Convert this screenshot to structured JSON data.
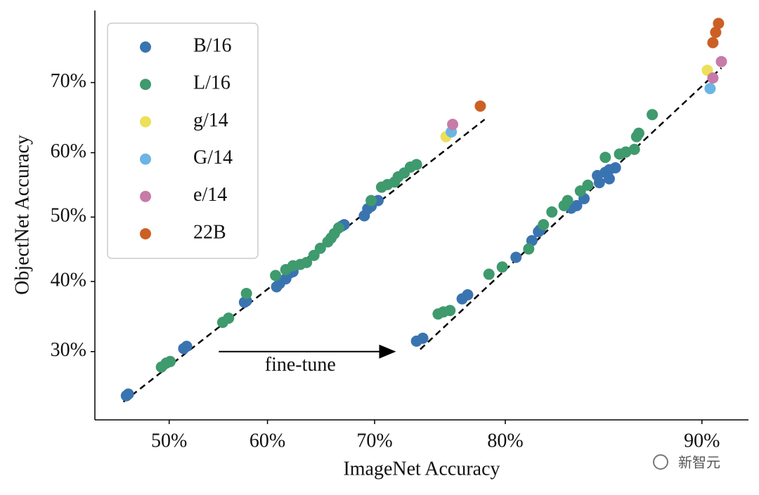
{
  "chart_data": {
    "type": "scatter",
    "xlabel": "ImageNet Accuracy",
    "ylabel": "ObjectNet Accuracy",
    "xscale": "logit",
    "yscale": "logit",
    "xlim": [
      42.4,
      91.6
    ],
    "ylim": [
      21.8,
      78.6
    ],
    "xticks": [
      {
        "value": 50,
        "label": "50%"
      },
      {
        "value": 60,
        "label": "60%"
      },
      {
        "value": 70,
        "label": "70%"
      },
      {
        "value": 80,
        "label": "80%"
      },
      {
        "value": 90,
        "label": "90%"
      }
    ],
    "yticks": [
      {
        "value": 30,
        "label": "30%"
      },
      {
        "value": 40,
        "label": "40%"
      },
      {
        "value": 50,
        "label": "50%"
      },
      {
        "value": 60,
        "label": "60%"
      },
      {
        "value": 70,
        "label": "70%"
      }
    ],
    "legend": "upper left",
    "series": [
      {
        "name": "B/16",
        "color": "#3a74b0",
        "x": [
          45.6,
          45.8,
          51.5,
          51.8,
          57.7,
          57.9,
          60.9,
          61.2,
          61.8,
          62.2,
          62.5,
          67.1,
          67.3,
          69.1,
          69.4,
          69.7,
          70.3,
          73.5,
          74.0,
          77.0,
          77.4,
          80.7,
          81.7,
          82.1,
          82.2,
          84.0,
          84.3,
          84.7,
          85.4,
          85.8,
          86.0,
          86.3,
          85.5,
          86.0
        ],
        "values": [
          24.5,
          24.7,
          30.4,
          30.7,
          36.9,
          37.1,
          39.2,
          39.7,
          40.4,
          41.3,
          41.5,
          48.6,
          48.8,
          50.2,
          51.3,
          51.7,
          52.6,
          31.4,
          31.8,
          37.4,
          38.0,
          43.7,
          46.3,
          47.7,
          48.0,
          51.4,
          51.8,
          52.9,
          56.5,
          57.0,
          57.4,
          57.7,
          55.4,
          56.0
        ]
      },
      {
        "name": "L/16",
        "color": "#3f9a6e",
        "x": [
          49.2,
          49.7,
          50.1,
          55.5,
          56.1,
          57.9,
          60.8,
          61.8,
          62.5,
          63.2,
          63.8,
          64.5,
          65.1,
          65.8,
          66.1,
          66.4,
          66.8,
          69.7,
          70.6,
          71.1,
          71.7,
          72.0,
          72.5,
          73.0,
          73.5,
          75.2,
          75.6,
          76.1,
          78.9,
          79.8,
          81.5,
          82.4,
          82.9,
          83.6,
          83.8,
          84.5,
          84.9,
          85.8,
          86.5,
          86.8,
          87.2,
          87.3,
          87.4,
          88.0
        ],
        "values": [
          28.0,
          28.5,
          28.7,
          34.0,
          34.6,
          38.2,
          40.9,
          41.8,
          42.4,
          42.6,
          42.9,
          44.0,
          45.1,
          46.1,
          46.7,
          47.4,
          48.3,
          52.6,
          54.7,
          55.1,
          55.5,
          56.3,
          56.9,
          57.8,
          58.2,
          35.2,
          35.5,
          35.7,
          41.1,
          42.2,
          45.0,
          48.8,
          50.8,
          51.8,
          52.6,
          54.1,
          55.0,
          59.3,
          59.8,
          60.1,
          60.5,
          62.4,
          62.9,
          65.6
        ]
      },
      {
        "name": "g/14",
        "color": "#ece05a",
        "x": [
          75.8,
          90.2
        ],
        "values": [
          62.4,
          71.6
        ]
      },
      {
        "name": "G/14",
        "color": "#6cb4e4",
        "x": [
          76.2,
          90.3
        ],
        "values": [
          63.1,
          69.2
        ]
      },
      {
        "name": "e/14",
        "color": "#c77ba8",
        "x": [
          76.3,
          90.4,
          90.7
        ],
        "values": [
          64.2,
          70.6,
          72.7
        ]
      },
      {
        "name": "22B",
        "color": "#cc5f24",
        "x": [
          78.3,
          90.4,
          90.5,
          90.6
        ],
        "values": [
          66.8,
          75.0,
          76.2,
          77.2
        ]
      }
    ],
    "trend_lines": [
      {
        "x": [
          45.3,
          78.6
        ],
        "values": [
          23.8,
          64.9
        ]
      },
      {
        "x": [
          73.8,
          90.7
        ],
        "values": [
          30.3,
          71.9
        ]
      }
    ],
    "annotation": {
      "text": "fine-tune",
      "x": [
        55.1,
        71.7
      ],
      "values": [
        30,
        30
      ],
      "text_x": 63.2,
      "text_y": 28.1
    },
    "watermark": "新智元"
  }
}
